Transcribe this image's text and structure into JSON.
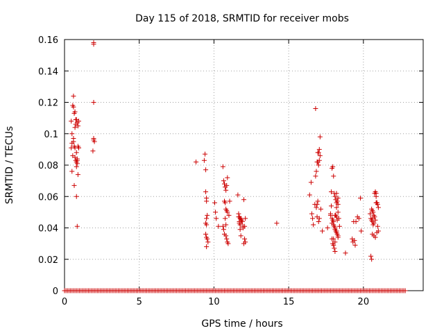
{
  "chart_data": {
    "type": "scatter",
    "title": "Day 115 of 2018, SRMTID for receiver mobs",
    "xlabel": "GPS time / hours",
    "ylabel": "SRMTID / TECUs",
    "xlim": [
      0,
      24
    ],
    "ylim": [
      0,
      0.16
    ],
    "xticks": [
      0,
      5,
      10,
      15,
      20
    ],
    "yticks": [
      0,
      0.02,
      0.04,
      0.06,
      0.08,
      0.1,
      0.12,
      0.14,
      0.16
    ],
    "ytick_labels": [
      "0",
      "0.02",
      "0.04",
      "0.06",
      "0.08",
      "0.1",
      "0.12",
      "0.14",
      "0.16"
    ],
    "xtick_labels": [
      "0",
      "5",
      "10",
      "15",
      "20"
    ],
    "grid": true,
    "marker": "+",
    "color": "#cc0000",
    "zero_line_range": [
      0,
      22.8
    ],
    "zero_line_step": 0.1,
    "series": [
      {
        "name": "SRMTID",
        "x": [
          0.45,
          0.5,
          0.55,
          0.6,
          0.65,
          0.7,
          0.75,
          0.8,
          0.85,
          0.9,
          0.95,
          0.5,
          0.55,
          0.6,
          0.65,
          0.7,
          0.75,
          0.8,
          0.85,
          0.9,
          0.5,
          0.6,
          0.7,
          0.8,
          0.85,
          0.9,
          0.95,
          0.45,
          0.6,
          0.8,
          0.85,
          0.95,
          0.85,
          0.8,
          0.65,
          0.7,
          0.75,
          1.95,
          1.95,
          1.95,
          1.95,
          1.95,
          1.9,
          2.0,
          8.8,
          9.35,
          9.4,
          9.45,
          9.45,
          9.5,
          9.5,
          9.55,
          9.5,
          9.45,
          9.45,
          9.5,
          9.55,
          9.6,
          9.5,
          9.5,
          10.05,
          10.1,
          10.15,
          10.3,
          10.6,
          10.65,
          10.7,
          10.75,
          10.8,
          10.85,
          10.9,
          10.7,
          10.75,
          10.8,
          10.85,
          10.9,
          10.6,
          10.65,
          10.7,
          10.8,
          10.85,
          10.9,
          10.95,
          11.0,
          10.75,
          10.8,
          11.05,
          11.6,
          11.65,
          11.7,
          11.75,
          11.8,
          11.85,
          11.7,
          11.75,
          11.8,
          11.85,
          11.9,
          11.95,
          11.65,
          11.7,
          11.75,
          11.8,
          12.0,
          12.05,
          12.1,
          12.0,
          12.05,
          11.95,
          12.1,
          14.2,
          16.4,
          16.5,
          16.55,
          16.6,
          16.65,
          16.75,
          16.8,
          16.85,
          16.9,
          16.95,
          17.0,
          17.05,
          17.1,
          16.8,
          16.85,
          16.9,
          16.95,
          17.0,
          17.05,
          17.1,
          16.9,
          16.95,
          17.0,
          17.05,
          17.15,
          17.25,
          17.6,
          17.8,
          17.85,
          17.9,
          17.95,
          18.0,
          18.05,
          18.1,
          18.15,
          18.2,
          18.25,
          18.3,
          17.8,
          17.85,
          17.9,
          17.95,
          18.0,
          18.05,
          18.1,
          18.15,
          18.2,
          18.25,
          18.3,
          17.9,
          17.95,
          18.0,
          18.05,
          18.1,
          18.15,
          18.2,
          18.25,
          17.9,
          18.0,
          18.1,
          18.2,
          18.3,
          18.0,
          18.1,
          18.2,
          18.3,
          18.1,
          18.2,
          18.3,
          18.35,
          18.4,
          18.8,
          19.25,
          19.3,
          19.35,
          19.4,
          19.45,
          19.5,
          19.6,
          19.7,
          19.8,
          19.85,
          20.45,
          20.5,
          20.55,
          20.6,
          20.65,
          20.7,
          20.75,
          20.8,
          20.85,
          20.9,
          20.95,
          21.0,
          20.55,
          20.6,
          20.65,
          20.7,
          20.75,
          20.8,
          20.85,
          20.9,
          20.95,
          21.0,
          20.6,
          20.7,
          20.8,
          20.9,
          20.5,
          20.55,
          20.6,
          20.85
        ],
        "y": [
          0.108,
          0.1,
          0.118,
          0.117,
          0.113,
          0.104,
          0.109,
          0.109,
          0.107,
          0.105,
          0.108,
          0.094,
          0.086,
          0.095,
          0.092,
          0.085,
          0.083,
          0.079,
          0.081,
          0.092,
          0.076,
          0.097,
          0.091,
          0.088,
          0.083,
          0.074,
          0.091,
          0.091,
          0.124,
          0.06,
          0.041,
          0.091,
          0.084,
          0.082,
          0.067,
          0.114,
          0.106,
          0.158,
          0.157,
          0.12,
          0.097,
          0.096,
          0.089,
          0.095,
          0.082,
          0.083,
          0.087,
          0.077,
          0.063,
          0.059,
          0.057,
          0.048,
          0.046,
          0.043,
          0.036,
          0.034,
          0.033,
          0.031,
          0.028,
          0.042,
          0.056,
          0.05,
          0.046,
          0.041,
          0.079,
          0.07,
          0.068,
          0.066,
          0.064,
          0.067,
          0.072,
          0.057,
          0.056,
          0.052,
          0.051,
          0.05,
          0.041,
          0.039,
          0.036,
          0.035,
          0.033,
          0.031,
          0.03,
          0.048,
          0.046,
          0.042,
          0.057,
          0.061,
          0.049,
          0.047,
          0.046,
          0.045,
          0.044,
          0.043,
          0.042,
          0.046,
          0.045,
          0.044,
          0.041,
          0.047,
          0.044,
          0.039,
          0.035,
          0.058,
          0.033,
          0.031,
          0.03,
          0.041,
          0.04,
          0.046,
          0.043,
          0.061,
          0.069,
          0.049,
          0.046,
          0.042,
          0.055,
          0.073,
          0.076,
          0.082,
          0.088,
          0.088,
          0.09,
          0.098,
          0.116,
          0.053,
          0.047,
          0.082,
          0.08,
          0.083,
          0.086,
          0.055,
          0.057,
          0.044,
          0.046,
          0.052,
          0.038,
          0.04,
          0.048,
          0.063,
          0.078,
          0.079,
          0.073,
          0.062,
          0.06,
          0.058,
          0.056,
          0.057,
          0.05,
          0.049,
          0.054,
          0.046,
          0.045,
          0.044,
          0.041,
          0.04,
          0.038,
          0.037,
          0.036,
          0.034,
          0.033,
          0.03,
          0.029,
          0.027,
          0.025,
          0.048,
          0.047,
          0.045,
          0.043,
          0.042,
          0.039,
          0.038,
          0.035,
          0.033,
          0.031,
          0.062,
          0.059,
          0.048,
          0.053,
          0.055,
          0.046,
          0.041,
          0.024,
          0.033,
          0.031,
          0.044,
          0.032,
          0.029,
          0.044,
          0.047,
          0.046,
          0.059,
          0.038,
          0.049,
          0.046,
          0.045,
          0.044,
          0.042,
          0.043,
          0.062,
          0.063,
          0.06,
          0.056,
          0.055,
          0.053,
          0.052,
          0.051,
          0.05,
          0.048,
          0.047,
          0.045,
          0.062,
          0.056,
          0.041,
          0.038,
          0.036,
          0.035,
          0.034,
          0.037,
          0.022,
          0.02,
          0.046,
          0.056
        ]
      }
    ]
  }
}
